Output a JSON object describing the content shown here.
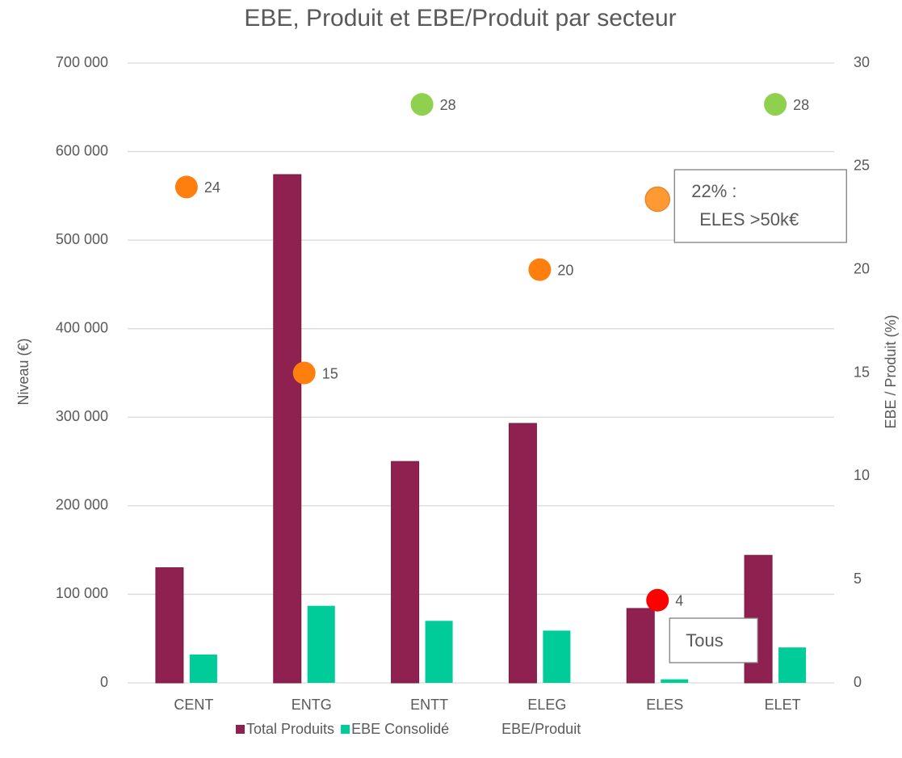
{
  "chart_data": {
    "type": "bar",
    "title": "EBE, Produit et EBE/Produit par secteur",
    "ylabel": "Niveau (€)",
    "y2label": "EBE / Produit (%)",
    "categories": [
      "CENT",
      "ENTG",
      "ENTT",
      "ELEG",
      "ELES",
      "ELET"
    ],
    "series": [
      {
        "name": "Total Produits",
        "color": "#8e2150",
        "values": [
          130000,
          574000,
          250000,
          293000,
          84000,
          144000
        ]
      },
      {
        "name": "EBE Consolidé",
        "color": "#00cc99",
        "values": [
          32000,
          87000,
          70000,
          59000,
          4000,
          40000
        ]
      },
      {
        "name": "EBE/Produit",
        "type": "scatter",
        "axis": "y2",
        "colors": [
          "#ff7f0e",
          "#ff7f0e",
          "#8fd14f",
          "#ff7f0e",
          "#ff0000",
          "#8fd14f"
        ],
        "values": [
          24,
          15,
          28,
          20,
          4,
          28
        ]
      }
    ],
    "annotations": [
      {
        "category": "ELES",
        "value": 22,
        "color": "#ff9933",
        "lines": [
          "22% :",
          "ELES >50k€"
        ]
      },
      {
        "category": "ELES",
        "lines": [
          "Tous"
        ]
      }
    ],
    "ylim": [
      0,
      700000
    ],
    "yticks": [
      {
        "value": 0,
        "label": "0"
      },
      {
        "value": 100000,
        "label": "100 000"
      },
      {
        "value": 200000,
        "label": "200 000"
      },
      {
        "value": 300000,
        "label": "300 000"
      },
      {
        "value": 400000,
        "label": "400 000"
      },
      {
        "value": 500000,
        "label": "500 000"
      },
      {
        "value": 600000,
        "label": "600 000"
      },
      {
        "value": 700000,
        "label": "700 000"
      }
    ],
    "y2lim": [
      0,
      30
    ],
    "y2ticks": [
      0,
      5,
      10,
      15,
      20,
      25,
      30
    ],
    "grid": true,
    "legend": "bottom"
  }
}
